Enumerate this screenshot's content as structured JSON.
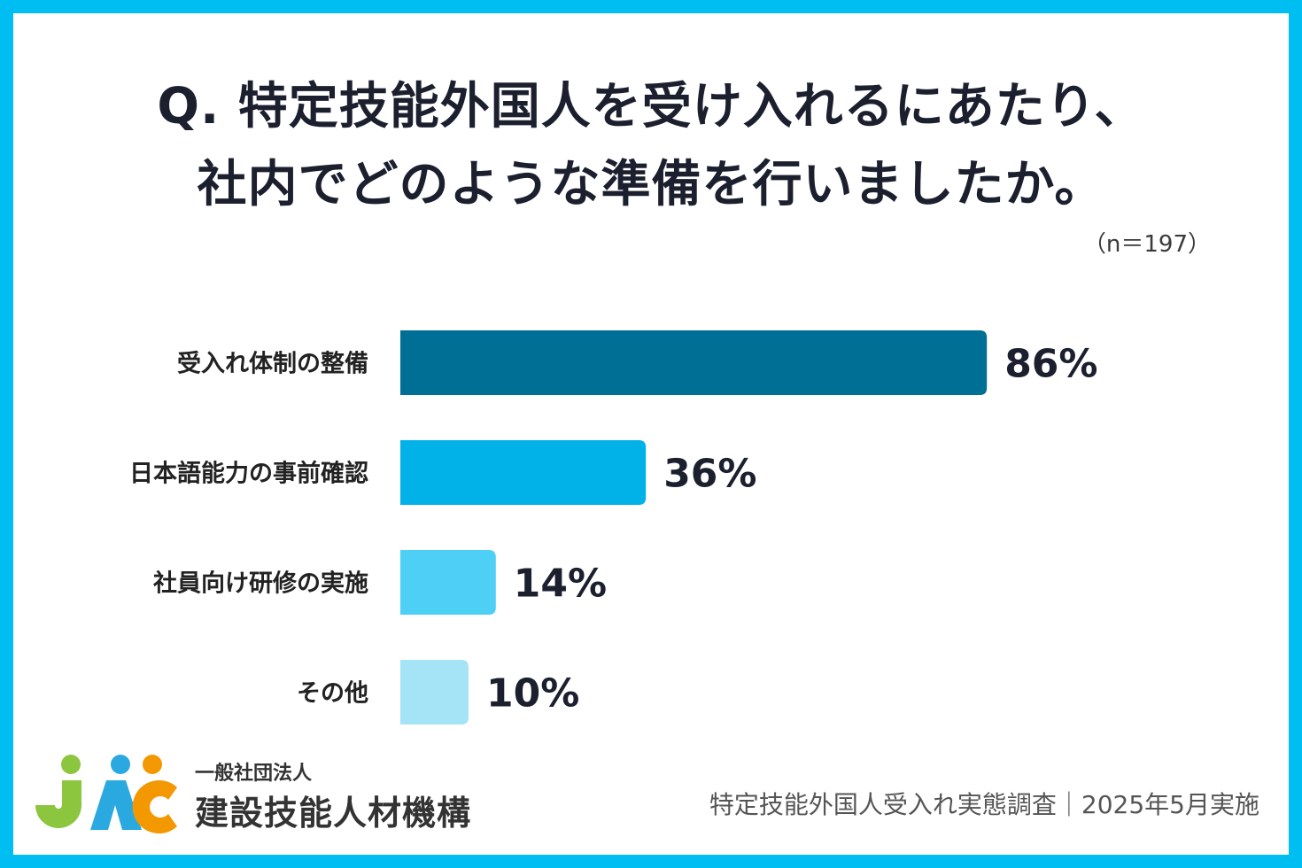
{
  "title": {
    "line1": "Q. 特定技能外国人を受け入れるにあたり、",
    "line2": "社内でどのような準備を行いましたか。"
  },
  "sample_note": "（n＝197）",
  "chart_data": {
    "type": "bar",
    "orientation": "horizontal",
    "categories": [
      "受入れ体制の整備",
      "日本語能力の事前確認",
      "社員向け研修の実施",
      "その他"
    ],
    "values": [
      86,
      36,
      14,
      10
    ],
    "value_labels": [
      "86%",
      "36%",
      "14%",
      "10%"
    ],
    "unit": "%",
    "xlim": [
      0,
      100
    ],
    "grid": false,
    "colors": [
      "#006f96",
      "#00b2e8",
      "#4ecff5",
      "#a5e4f7"
    ]
  },
  "logo": {
    "org_type": "一般社団法人",
    "name": "建設技能人材機構",
    "dot_colors": [
      "#8cc63f",
      "#2aa9e0",
      "#f39800"
    ]
  },
  "footer": "特定技能外国人受入れ実態調査｜2025年5月実施",
  "colors": {
    "frame": "#00bdf2",
    "background": "#ffffff",
    "text": "#1c1f2e"
  }
}
